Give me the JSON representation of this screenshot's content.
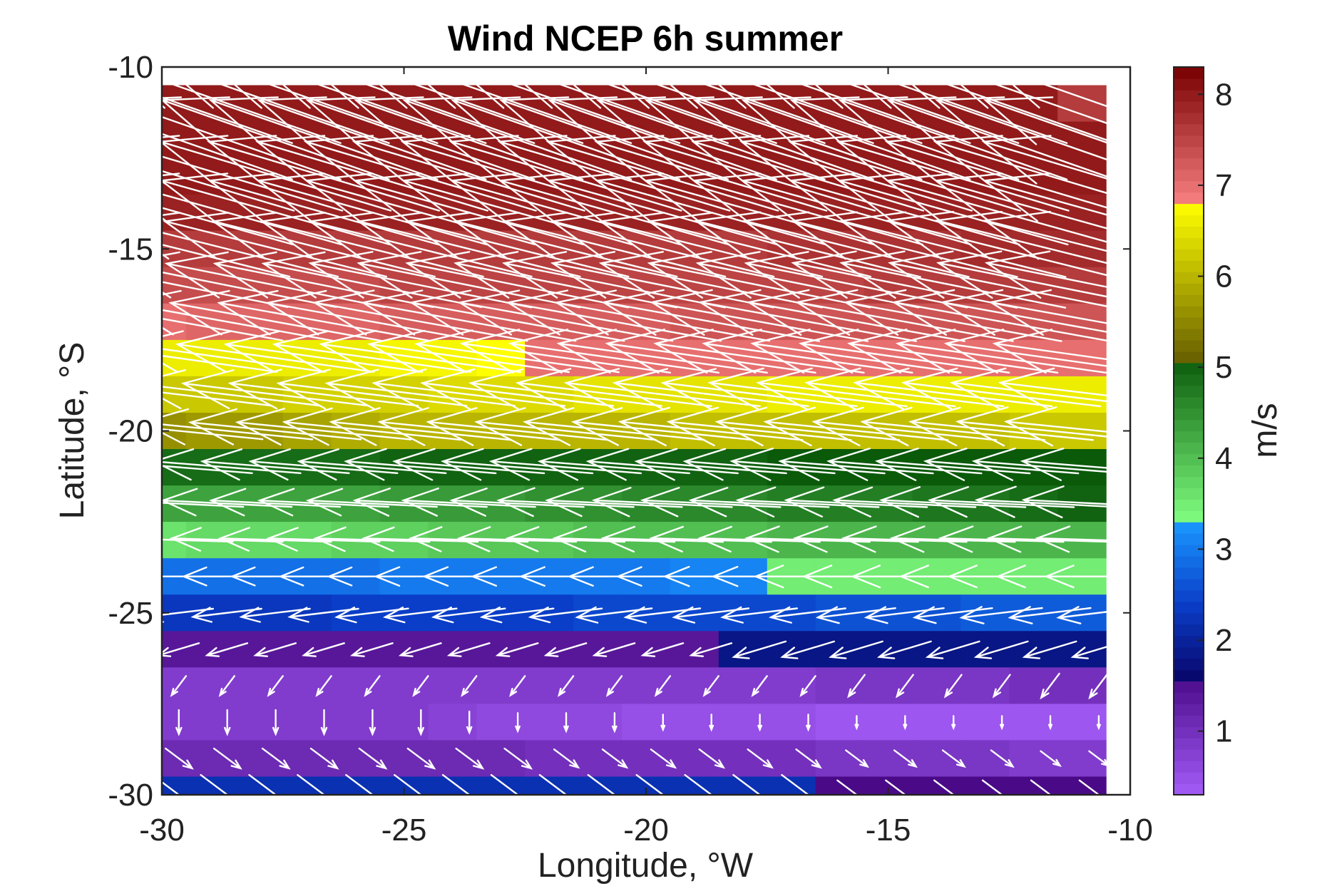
{
  "chart_data": {
    "type": "heatmap",
    "title": "Wind NCEP 6h summer",
    "xlabel": "Longitude, °W",
    "ylabel": "Latitude, °S",
    "xlim": [
      -30,
      -10
    ],
    "ylim": [
      -30,
      -10
    ],
    "x_ticks": [
      "-30",
      "-25",
      "-20",
      "-15",
      "-10"
    ],
    "y_ticks": [
      "-10",
      "-15",
      "-20",
      "-25",
      "-30"
    ],
    "colorbar": {
      "label": "m/s",
      "range": [
        0.3,
        8.3
      ],
      "ticks": [
        "1",
        "2",
        "3",
        "4",
        "5",
        "6",
        "7",
        "8"
      ]
    },
    "grid_x_centers": [
      -30,
      -29,
      -28,
      -27,
      -26,
      -25,
      -24,
      -23,
      -22,
      -21,
      -20,
      -19,
      -18,
      -17,
      -16,
      -15,
      -14,
      -13,
      -12,
      -11
    ],
    "rows": [
      {
        "lat": -11,
        "speed": [
          8.0,
          8.0,
          8.0,
          8.0,
          8.0,
          8.0,
          8.0,
          8.0,
          8.0,
          8.0,
          8.0,
          8.0,
          8.0,
          8.0,
          8.0,
          8.0,
          8.0,
          8.0,
          8.0,
          7.6
        ],
        "u_dir": -1.0,
        "v_dir": 0.35
      },
      {
        "lat": -12,
        "speed": [
          8.0,
          8.0,
          8.0,
          8.0,
          8.0,
          8.0,
          8.0,
          8.0,
          8.0,
          8.0,
          8.0,
          8.0,
          8.0,
          8.0,
          8.0,
          8.0,
          8.0,
          8.0,
          8.0,
          8.0
        ],
        "u_dir": -1.0,
        "v_dir": 0.35
      },
      {
        "lat": -13,
        "speed": [
          8.0,
          8.0,
          8.0,
          8.0,
          8.0,
          8.0,
          8.0,
          8.0,
          8.0,
          8.0,
          8.0,
          8.0,
          8.0,
          8.0,
          8.0,
          8.0,
          8.0,
          8.0,
          8.0,
          8.0
        ],
        "u_dir": -1.0,
        "v_dir": 0.3
      },
      {
        "lat": -14,
        "speed": [
          7.9,
          7.9,
          7.9,
          7.9,
          7.9,
          7.9,
          7.9,
          7.9,
          7.9,
          7.9,
          7.9,
          7.9,
          7.9,
          7.9,
          7.9,
          7.9,
          7.9,
          7.9,
          7.9,
          7.9
        ],
        "u_dir": -1.0,
        "v_dir": 0.28
      },
      {
        "lat": -15,
        "speed": [
          7.6,
          7.6,
          7.6,
          7.6,
          7.6,
          7.6,
          7.6,
          7.6,
          7.6,
          7.6,
          7.6,
          7.6,
          7.6,
          7.7,
          7.7,
          7.7,
          7.7,
          7.8,
          7.8,
          7.8
        ],
        "u_dir": -1.0,
        "v_dir": 0.25
      },
      {
        "lat": -16,
        "speed": [
          7.4,
          7.4,
          7.4,
          7.4,
          7.4,
          7.5,
          7.5,
          7.5,
          7.5,
          7.5,
          7.5,
          7.5,
          7.5,
          7.5,
          7.5,
          7.6,
          7.6,
          7.6,
          7.6,
          7.6
        ],
        "u_dir": -1.0,
        "v_dir": 0.2
      },
      {
        "lat": -17,
        "speed": [
          7.0,
          7.1,
          7.1,
          7.1,
          7.1,
          7.2,
          7.2,
          7.2,
          7.2,
          7.2,
          7.2,
          7.3,
          7.3,
          7.3,
          7.3,
          7.3,
          7.3,
          7.3,
          7.3,
          7.3
        ],
        "u_dir": -1.0,
        "v_dir": 0.18
      },
      {
        "lat": -18,
        "speed": [
          6.6,
          6.6,
          6.6,
          6.6,
          6.6,
          6.7,
          6.7,
          6.8,
          7.0,
          7.0,
          7.0,
          7.0,
          7.0,
          7.0,
          7.0,
          7.0,
          7.0,
          7.0,
          7.0,
          7.0
        ],
        "u_dir": -1.0,
        "v_dir": 0.14
      },
      {
        "lat": -19,
        "speed": [
          6.2,
          6.2,
          6.2,
          6.3,
          6.3,
          6.3,
          6.4,
          6.4,
          6.4,
          6.5,
          6.5,
          6.5,
          6.5,
          6.6,
          6.6,
          6.6,
          6.6,
          6.6,
          6.6,
          6.6
        ],
        "u_dir": -1.0,
        "v_dir": 0.12
      },
      {
        "lat": -20,
        "speed": [
          5.6,
          5.7,
          5.7,
          5.8,
          5.9,
          6.0,
          6.0,
          6.0,
          6.0,
          6.0,
          6.0,
          6.1,
          6.1,
          6.1,
          6.1,
          6.1,
          6.1,
          6.1,
          6.2,
          6.2
        ],
        "u_dir": -1.0,
        "v_dir": 0.1
      },
      {
        "lat": -21,
        "speed": [
          4.9,
          4.9,
          4.9,
          4.9,
          4.9,
          5.0,
          5.0,
          5.0,
          5.0,
          5.0,
          5.0,
          5.0,
          5.0,
          5.1,
          5.1,
          5.1,
          5.1,
          5.1,
          5.1,
          5.1
        ],
        "u_dir": -1.0,
        "v_dir": 0.08
      },
      {
        "lat": -22,
        "speed": [
          4.3,
          4.3,
          4.3,
          4.3,
          4.3,
          4.4,
          4.4,
          4.4,
          4.5,
          4.5,
          4.6,
          4.6,
          4.6,
          4.7,
          4.7,
          4.7,
          4.8,
          4.8,
          4.9,
          5.0
        ],
        "u_dir": -1.0,
        "v_dir": 0.05
      },
      {
        "lat": -23,
        "speed": [
          3.6,
          3.7,
          3.7,
          3.7,
          3.8,
          3.8,
          3.9,
          3.9,
          3.9,
          4.0,
          4.0,
          4.0,
          4.0,
          4.1,
          4.1,
          4.1,
          4.1,
          4.1,
          4.1,
          4.1
        ],
        "u_dir": -1.0,
        "v_dir": 0.03
      },
      {
        "lat": -24,
        "speed": [
          2.9,
          2.9,
          2.9,
          2.9,
          2.9,
          3.0,
          3.0,
          3.0,
          3.0,
          3.0,
          3.0,
          3.1,
          3.1,
          3.5,
          3.5,
          3.5,
          3.5,
          3.5,
          3.5,
          3.5
        ],
        "u_dir": -1.0,
        "v_dir": 0.0
      },
      {
        "lat": -25,
        "speed": [
          2.3,
          2.3,
          2.3,
          2.3,
          2.4,
          2.4,
          2.4,
          2.4,
          2.4,
          2.5,
          2.5,
          2.5,
          2.5,
          2.5,
          2.6,
          2.6,
          2.6,
          2.7,
          2.7,
          2.7
        ],
        "u_dir": -1.0,
        "v_dir": -0.12
      },
      {
        "lat": -26,
        "speed": [
          1.4,
          1.4,
          1.4,
          1.4,
          1.4,
          1.4,
          1.4,
          1.4,
          1.4,
          1.4,
          1.4,
          1.4,
          1.8,
          1.8,
          1.8,
          1.8,
          1.8,
          1.8,
          1.8,
          1.8
        ],
        "u_dir": -1.0,
        "v_dir": -0.3
      },
      {
        "lat": -27,
        "speed": [
          0.8,
          0.8,
          0.8,
          0.8,
          0.8,
          0.8,
          0.8,
          0.8,
          0.8,
          0.8,
          0.8,
          0.8,
          0.8,
          0.8,
          0.9,
          0.9,
          0.9,
          0.9,
          1.0,
          1.0
        ],
        "u_dir": -0.6,
        "v_dir": -0.8
      },
      {
        "lat": -28,
        "speed": [
          0.8,
          0.8,
          0.8,
          0.8,
          0.8,
          0.8,
          0.7,
          0.6,
          0.6,
          0.6,
          0.5,
          0.5,
          0.5,
          0.5,
          0.4,
          0.4,
          0.4,
          0.4,
          0.4,
          0.4
        ],
        "u_dir": 0.0,
        "v_dir": -1.0
      },
      {
        "lat": -29,
        "speed": [
          1.1,
          1.1,
          1.1,
          1.1,
          1.1,
          1.1,
          1.1,
          1.1,
          1.0,
          1.0,
          1.0,
          1.0,
          1.0,
          1.0,
          0.9,
          0.9,
          0.9,
          0.9,
          0.8,
          0.8
        ],
        "u_dir": 0.8,
        "v_dir": -0.6
      },
      {
        "lat": -30,
        "speed": [
          2.2,
          2.2,
          2.2,
          2.2,
          2.2,
          2.2,
          2.2,
          2.2,
          2.2,
          2.2,
          2.2,
          2.2,
          2.2,
          2.2,
          1.6,
          1.6,
          1.6,
          1.6,
          1.6,
          1.6
        ],
        "u_dir": 0.8,
        "v_dir": -0.6
      }
    ]
  }
}
